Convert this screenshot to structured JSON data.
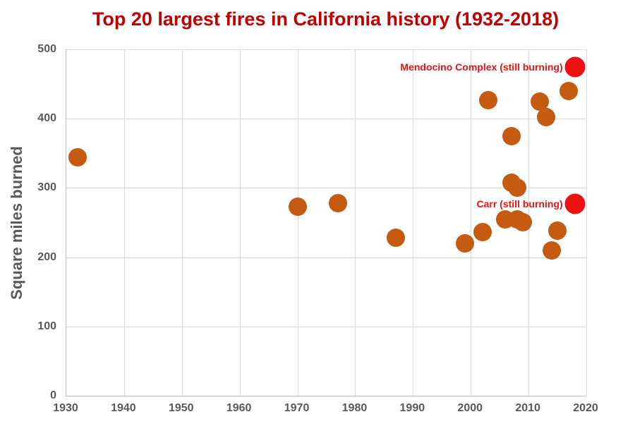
{
  "header": {
    "title": "Top 20 largest fires in California history (1932-2018)"
  },
  "y_axis": {
    "title": "Square miles burned"
  },
  "colors": {
    "title_red": "#C00000",
    "point_orange": "#C55A11",
    "highlight_red": "#EE1111",
    "annotation_red": "#EE1111",
    "axis_text_gray": "#595959",
    "gridline_gray": "#D9D9D9",
    "axis_line_gray": "#BFBFBF",
    "background": "#FFFFFF"
  },
  "chart_data": {
    "type": "scatter",
    "title": "Top 20 largest fires in California history (1932-2018)",
    "xlabel": "",
    "ylabel": "Square miles burned",
    "xlim": [
      1930,
      2020
    ],
    "ylim": [
      0,
      500
    ],
    "x_ticks": [
      1930,
      1940,
      1950,
      1960,
      1970,
      1980,
      1990,
      2000,
      2010,
      2020
    ],
    "y_ticks": [
      0,
      100,
      200,
      300,
      400,
      500
    ],
    "grid": true,
    "legend": "none",
    "points": [
      {
        "year": 1932,
        "sq_miles": 344
      },
      {
        "year": 1970,
        "sq_miles": 273
      },
      {
        "year": 1977,
        "sq_miles": 278
      },
      {
        "year": 1987,
        "sq_miles": 228
      },
      {
        "year": 1999,
        "sq_miles": 220
      },
      {
        "year": 2002,
        "sq_miles": 236
      },
      {
        "year": 2003,
        "sq_miles": 427
      },
      {
        "year": 2006,
        "sq_miles": 255
      },
      {
        "year": 2007,
        "sq_miles": 308
      },
      {
        "year": 2007,
        "sq_miles": 375
      },
      {
        "year": 2008,
        "sq_miles": 300
      },
      {
        "year": 2008,
        "sq_miles": 255
      },
      {
        "year": 2009,
        "sq_miles": 251
      },
      {
        "year": 2012,
        "sq_miles": 425
      },
      {
        "year": 2013,
        "sq_miles": 402
      },
      {
        "year": 2014,
        "sq_miles": 210
      },
      {
        "year": 2015,
        "sq_miles": 238
      },
      {
        "year": 2017,
        "sq_miles": 440
      },
      {
        "year": 2018,
        "sq_miles": 475,
        "highlight": true,
        "label": "Mendocino Complex (still burning)"
      },
      {
        "year": 2018,
        "sq_miles": 277,
        "highlight": true,
        "label": "Carr (still burning)"
      }
    ]
  }
}
